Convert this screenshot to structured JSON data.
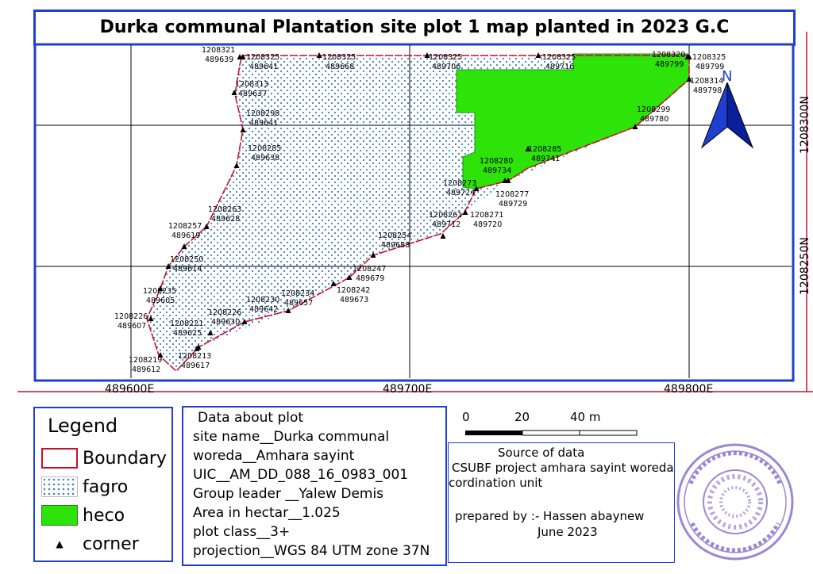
{
  "title": "Durka communal Plantation site plot 1 map planted in 2023 G.C",
  "grid_labels": {
    "easting": [
      "489600E",
      "489700E",
      "489800E"
    ],
    "northing": [
      "1208300N",
      "1208250N"
    ]
  },
  "north_arrow": {
    "label": "N",
    "icon": "north-arrow-icon",
    "color": "#1f3fd0"
  },
  "corners": [
    {
      "n": "1208321",
      "e": "489639"
    },
    {
      "n": "1208325",
      "e": "489641"
    },
    {
      "n": "1208325",
      "e": "489668"
    },
    {
      "n": "1208325",
      "e": "489706"
    },
    {
      "n": "1208325",
      "e": "489716"
    },
    {
      "n": "1208320",
      "e": "489799"
    },
    {
      "n": "1208325",
      "e": "489799"
    },
    {
      "n": "1208314",
      "e": "489798"
    },
    {
      "n": "1208313",
      "e": "489637"
    },
    {
      "n": "1208298",
      "e": "489641"
    },
    {
      "n": "1208299",
      "e": "489780"
    },
    {
      "n": "1208285",
      "e": "489638"
    },
    {
      "n": "1208285",
      "e": "489741"
    },
    {
      "n": "1208280",
      "e": "489734"
    },
    {
      "n": "1208273",
      "e": "489724"
    },
    {
      "n": "1208277",
      "e": "489729"
    },
    {
      "n": "1208263",
      "e": "489628"
    },
    {
      "n": "1208261",
      "e": "489712"
    },
    {
      "n": "1208271",
      "e": "489720"
    },
    {
      "n": "1208257",
      "e": "489619"
    },
    {
      "n": "1208254",
      "e": "489688"
    },
    {
      "n": "1208250",
      "e": "489614"
    },
    {
      "n": "1208247",
      "e": "489679"
    },
    {
      "n": "1208242",
      "e": "489673"
    },
    {
      "n": "1208235",
      "e": "489605"
    },
    {
      "n": "1208234",
      "e": "489657"
    },
    {
      "n": "1208230",
      "e": "489642"
    },
    {
      "n": "1208226",
      "e": "489630"
    },
    {
      "n": "1208226",
      "e": "489607"
    },
    {
      "n": "1208221",
      "e": "489625"
    },
    {
      "n": "1208213",
      "e": "489617"
    },
    {
      "n": "1208219",
      "e": "489612"
    }
  ],
  "legend": {
    "title": "Legend",
    "items": [
      {
        "label": "Boundary",
        "color": "#c8102e"
      },
      {
        "label": "fagro",
        "color": "#3a7ec4"
      },
      {
        "label": "heco",
        "color": "#2ee30a"
      },
      {
        "label": "corner",
        "color": "#000000"
      }
    ]
  },
  "plot_info": {
    "heading": "Data about plot",
    "lines": [
      "site name__Durka communal",
      "woreda__Amhara sayint",
      "UIC__AM_DD_088_16_0983_001",
      "Group leader __Yalew Demis",
      "Area in hectar__1.025",
      "plot class__3+",
      "projection__WGS 84 UTM zone 37N"
    ]
  },
  "scale_bar": {
    "labels": [
      "0",
      "20",
      "40 m"
    ]
  },
  "source": {
    "heading": "Source of data",
    "line1": "CSUBF project amhara sayint woreda",
    "line2": "cordination unit",
    "prepared": "prepared by :- Hassen abaynew",
    "date": "June 2023"
  },
  "stamp": {
    "icon": "office-stamp-icon",
    "color": "#7a5fc8"
  },
  "colors": {
    "boundary": "#c8102e",
    "heco": "#2ee30a",
    "fagro_dots": "#3a7ec4",
    "frame": "#1f3fd0"
  }
}
